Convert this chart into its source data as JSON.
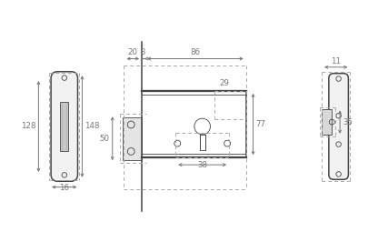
{
  "background_color": "#ffffff",
  "line_color": "#444444",
  "dim_color": "#777777",
  "dashed_color": "#aaaaaa",
  "lw": 1.1,
  "thin_lw": 0.6,
  "fig_width": 4.16,
  "fig_height": 2.77,
  "dims": {
    "d128": "128",
    "d148": "148",
    "d16": "16",
    "d20": "20",
    "d3": "3",
    "d86": "86",
    "d29": "29",
    "d50": "50",
    "d77": "77",
    "d38": "38",
    "d11": "11",
    "d35": "35"
  }
}
